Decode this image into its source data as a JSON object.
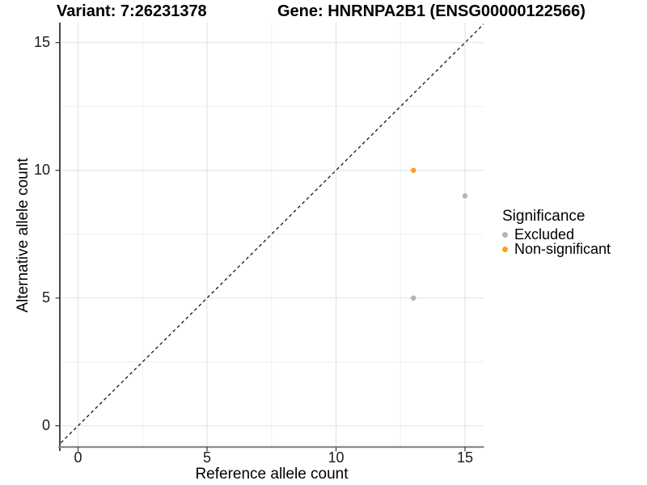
{
  "chart_data": {
    "type": "scatter",
    "titles": {
      "variant": "Variant: 7:26231378",
      "gene": "Gene: HNRNPA2B1 (ENSG00000122566)"
    },
    "xlabel": "Reference allele count",
    "ylabel": "Alternative allele count",
    "xlim": [
      -0.75,
      15.75
    ],
    "ylim": [
      -0.75,
      15.75
    ],
    "x_ticks": [
      0,
      5,
      10,
      15
    ],
    "y_ticks": [
      0,
      5,
      10,
      15
    ],
    "x_minor_ticks": [
      2.5,
      7.5,
      12.5
    ],
    "y_minor_ticks": [
      2.5,
      7.5,
      12.5
    ],
    "grid": true,
    "identity_line": {
      "style": "dashed",
      "equation": "y = x"
    },
    "legend": {
      "title": "Significance",
      "position": "right"
    },
    "series": [
      {
        "name": "Excluded",
        "color": "#B3B3B3",
        "points": [
          [
            13,
            5
          ],
          [
            15,
            9
          ]
        ]
      },
      {
        "name": "Non-significant",
        "color": "#F9A11B",
        "points": [
          [
            13,
            10
          ]
        ]
      }
    ]
  },
  "colors": {
    "background": "#FFFFFF",
    "grid_major": "#E4E4E4",
    "grid_minor": "#EFEFEF",
    "axis_line_left": "#1A1A1A",
    "axis_line_bottom": "#8C8C8C",
    "identity_line": "#141414",
    "tick_mark": "#333333",
    "excluded": "#B3B3B3",
    "non_significant": "#F9A11B"
  }
}
